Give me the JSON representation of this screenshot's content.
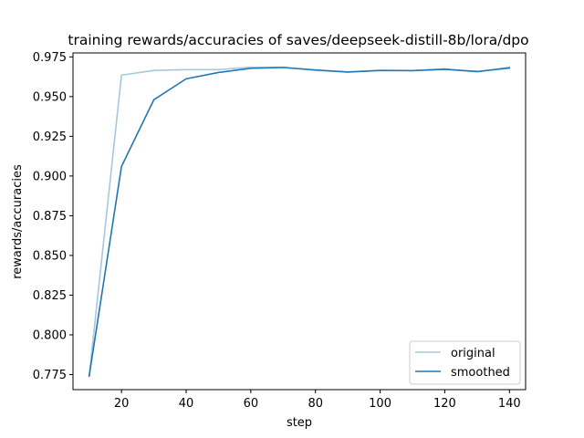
{
  "chart_data": {
    "type": "line",
    "title": "training rewards/accuracies of saves/deepseek-distill-8b/lora/dpo",
    "xlabel": "step",
    "ylabel": "rewards/accuracies",
    "xlim": [
      5,
      145
    ],
    "ylim": [
      0.7655,
      0.9775
    ],
    "xticks": [
      20,
      40,
      60,
      80,
      100,
      120,
      140
    ],
    "yticks": [
      0.775,
      0.8,
      0.825,
      0.85,
      0.875,
      0.9,
      0.925,
      0.95,
      0.975
    ],
    "ytick_labels": [
      "0.775",
      "0.800",
      "0.825",
      "0.850",
      "0.875",
      "0.900",
      "0.925",
      "0.950",
      "0.975"
    ],
    "x": [
      10,
      20,
      30,
      40,
      50,
      60,
      70,
      80,
      90,
      100,
      110,
      120,
      130,
      140
    ],
    "series": [
      {
        "name": "original",
        "color": "#a6c8de",
        "values": [
          0.774,
          0.9635,
          0.9665,
          0.967,
          0.967,
          0.9685,
          0.9685,
          0.9665,
          0.9655,
          0.9665,
          0.9665,
          0.9675,
          0.9655,
          0.9685
        ]
      },
      {
        "name": "smoothed",
        "color": "#1f77b4",
        "values": [
          0.774,
          0.906,
          0.948,
          0.9612,
          0.9652,
          0.9678,
          0.9683,
          0.9668,
          0.9655,
          0.9665,
          0.9663,
          0.9672,
          0.9658,
          0.968
        ]
      }
    ],
    "grid": false,
    "legend_position": "lower-right"
  }
}
